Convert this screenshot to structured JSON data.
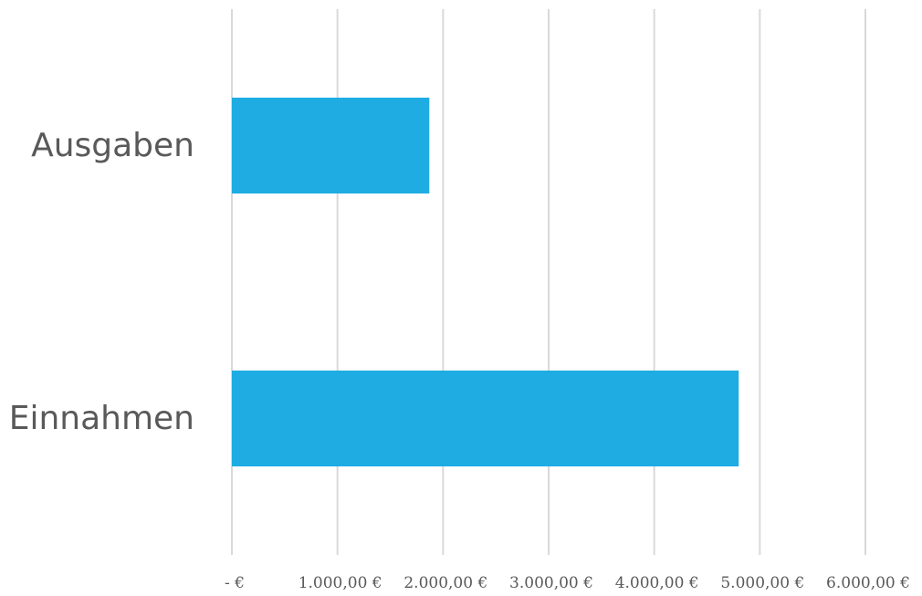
{
  "chart_data": {
    "type": "bar",
    "orientation": "horizontal",
    "categories": [
      "Ausgaben",
      "Einnahmen"
    ],
    "values": [
      1870,
      4800
    ],
    "xlim": [
      0,
      6000
    ],
    "xticks": [
      0,
      1000,
      2000,
      3000,
      4000,
      5000,
      6000
    ],
    "xtick_labels": [
      "-  €",
      "1.000,00 €",
      "2.000,00 €",
      "3.000,00 €",
      "4.000,00 €",
      "5.000,00 €",
      "6.000,00 €"
    ],
    "title": "",
    "xlabel": "",
    "ylabel": "",
    "grid": "vertical",
    "legend": "none",
    "colors": {
      "bar": "#1eace2",
      "grid": "#d9d9d9",
      "text": "#595959"
    }
  }
}
